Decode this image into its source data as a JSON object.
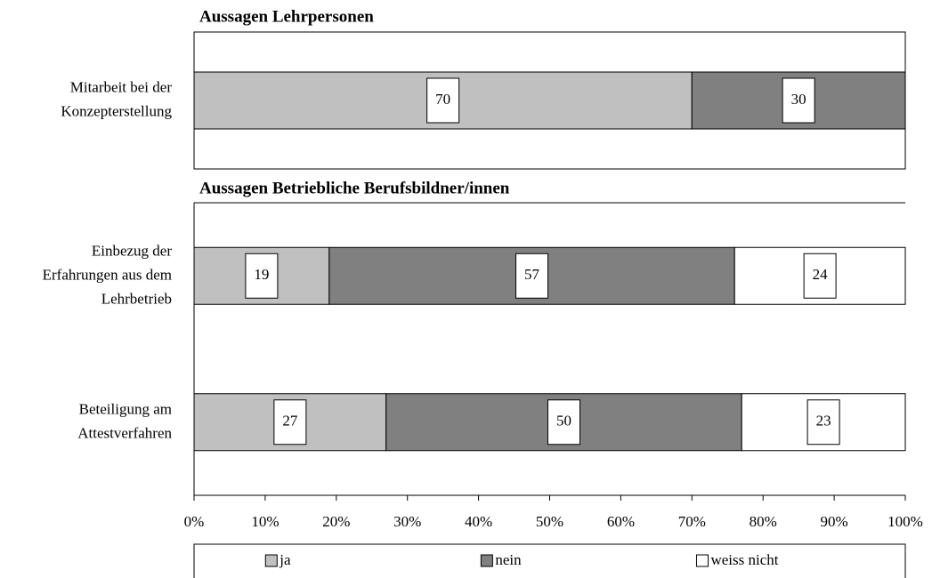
{
  "chart_data": [
    {
      "type": "bar",
      "orientation": "horizontal",
      "stacked": true,
      "title": "Aussagen Lehrpersonen",
      "categories": [
        [
          "Mitarbeit bei der",
          "Konzepterstellung"
        ]
      ],
      "series": [
        {
          "name": "ja",
          "color": "#c0c0c0",
          "values": [
            70
          ]
        },
        {
          "name": "nein",
          "color": "#808080",
          "values": [
            30
          ]
        }
      ],
      "xlim": [
        0,
        100
      ]
    },
    {
      "type": "bar",
      "orientation": "horizontal",
      "stacked": true,
      "title": "Aussagen Betriebliche Berufsbildner/innen",
      "categories": [
        [
          "Einbezug der",
          "Erfahrungen aus dem",
          "Lehrbetrieb"
        ],
        [
          "Beteiligung am",
          "Attestverfahren"
        ]
      ],
      "series": [
        {
          "name": "ja",
          "color": "#c0c0c0",
          "values": [
            19,
            27
          ]
        },
        {
          "name": "nein",
          "color": "#808080",
          "values": [
            57,
            50
          ]
        },
        {
          "name": "weiss nicht",
          "color": "#ffffff",
          "values": [
            24,
            23
          ]
        }
      ],
      "xlim": [
        0,
        100
      ],
      "xticks": [
        {
          "value": 0,
          "label": "0%"
        },
        {
          "value": 10,
          "label": "10%"
        },
        {
          "value": 20,
          "label": "20%"
        },
        {
          "value": 30,
          "label": "30%"
        },
        {
          "value": 40,
          "label": "40%"
        },
        {
          "value": 50,
          "label": "50%"
        },
        {
          "value": 60,
          "label": "60%"
        },
        {
          "value": 70,
          "label": "70%"
        },
        {
          "value": 80,
          "label": "80%"
        },
        {
          "value": 90,
          "label": "90%"
        },
        {
          "value": 100,
          "label": "100%"
        }
      ]
    }
  ]
}
